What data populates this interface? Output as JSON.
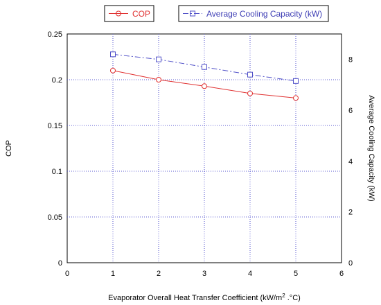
{
  "chart_data": {
    "type": "line",
    "xlabel": "Evaporator Overall Heat Transfer Coefficient (kW/m",
    "xlabel_sup": "2",
    "xlabel_tail": " .°C)",
    "ylabel": "COP",
    "y2label": "Average Cooling Capacity (kW)",
    "xlim": [
      0,
      6
    ],
    "ylim": [
      0,
      0.25
    ],
    "y2lim": [
      0,
      9
    ],
    "grid": true,
    "x_ticks": [
      "0",
      "1",
      "2",
      "3",
      "4",
      "5",
      "6"
    ],
    "y_ticks": [
      "0",
      "0.05",
      "0.1",
      "0.15",
      "0.2",
      "0.25"
    ],
    "y2_ticks": [
      "0",
      "2",
      "4",
      "6",
      "8"
    ],
    "legend_position": "top",
    "series": [
      {
        "name": "COP",
        "axis": "left",
        "color": "#e03030",
        "marker": "circle",
        "line_style": "solid",
        "x": [
          1,
          2,
          3,
          4,
          5
        ],
        "y": [
          0.21,
          0.2,
          0.193,
          0.185,
          0.18
        ]
      },
      {
        "name": "Average Cooling Capacity (kW)",
        "axis": "right",
        "color": "#5050c8",
        "marker": "square",
        "line_style": "dash-dot",
        "x": [
          1,
          2,
          3,
          4,
          5
        ],
        "y": [
          8.2,
          8.0,
          7.7,
          7.4,
          7.15
        ]
      }
    ]
  }
}
